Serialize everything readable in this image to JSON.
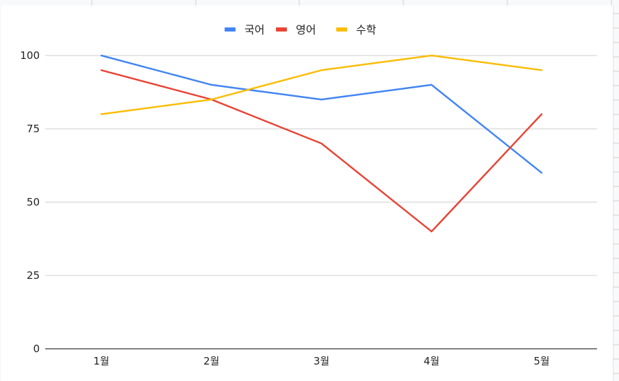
{
  "chart_data": {
    "type": "line",
    "categories": [
      "1월",
      "2월",
      "3월",
      "4월",
      "5월"
    ],
    "series": [
      {
        "name": "국어",
        "color": "#4285f4",
        "values": [
          100,
          90,
          85,
          90,
          60
        ]
      },
      {
        "name": "영어",
        "color": "#ea4335",
        "values": [
          95,
          85,
          70,
          40,
          80
        ]
      },
      {
        "name": "수학",
        "color": "#fbbc04",
        "values": [
          80,
          85,
          95,
          100,
          95
        ]
      }
    ],
    "y_ticks": [
      "0",
      "25",
      "50",
      "75",
      "100"
    ],
    "ylim": [
      0,
      110
    ],
    "grid": true,
    "legend_position": "top-center",
    "title": "",
    "xlabel": "",
    "ylabel": ""
  }
}
